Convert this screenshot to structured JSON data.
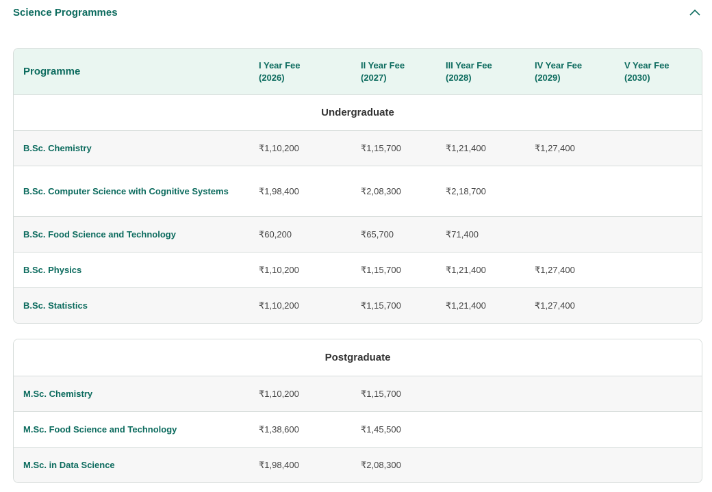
{
  "section": {
    "title": "Science Programmes",
    "toggle_icon": "chevron-up-icon"
  },
  "table_header": {
    "programme": "Programme",
    "years": [
      {
        "line1": "I Year Fee",
        "line2": "(2026)"
      },
      {
        "line1": "II Year Fee",
        "line2": "(2027)"
      },
      {
        "line1": "III Year Fee",
        "line2": "(2028)"
      },
      {
        "line1": "IV Year Fee",
        "line2": "(2029)"
      },
      {
        "line1": "V Year Fee",
        "line2": "(2030)"
      }
    ]
  },
  "undergraduate": {
    "label": "Undergraduate",
    "rows": [
      {
        "name": "B.Sc. Chemistry",
        "fees": [
          "₹1,10,200",
          "₹1,15,700",
          "₹1,21,400",
          "₹1,27,400",
          ""
        ]
      },
      {
        "name": "B.Sc. Computer Science with Cognitive Systems",
        "fees": [
          "₹1,98,400",
          "₹2,08,300",
          "₹2,18,700",
          "",
          ""
        ]
      },
      {
        "name": "B.Sc. Food Science and Technology",
        "fees": [
          "₹60,200",
          "₹65,700",
          "₹71,400",
          "",
          ""
        ]
      },
      {
        "name": "B.Sc. Physics",
        "fees": [
          "₹1,10,200",
          "₹1,15,700",
          "₹1,21,400",
          "₹1,27,400",
          ""
        ]
      },
      {
        "name": "B.Sc. Statistics",
        "fees": [
          "₹1,10,200",
          "₹1,15,700",
          "₹1,21,400",
          "₹1,27,400",
          ""
        ]
      }
    ]
  },
  "postgraduate": {
    "label": "Postgraduate",
    "rows": [
      {
        "name": "M.Sc. Chemistry",
        "fees": [
          "₹1,10,200",
          "₹1,15,700",
          "",
          "",
          ""
        ]
      },
      {
        "name": "M.Sc. Food Science and Technology",
        "fees": [
          "₹1,38,600",
          "₹1,45,500",
          "",
          "",
          ""
        ]
      },
      {
        "name": "M.Sc. in Data Science",
        "fees": [
          "₹1,98,400",
          "₹2,08,300",
          "",
          "",
          ""
        ]
      }
    ]
  },
  "colors": {
    "accent": "#0c6b5e",
    "header_bg": "#eaf6f1",
    "alt_row_bg": "#f7f7f7",
    "border": "#d6dcda"
  }
}
